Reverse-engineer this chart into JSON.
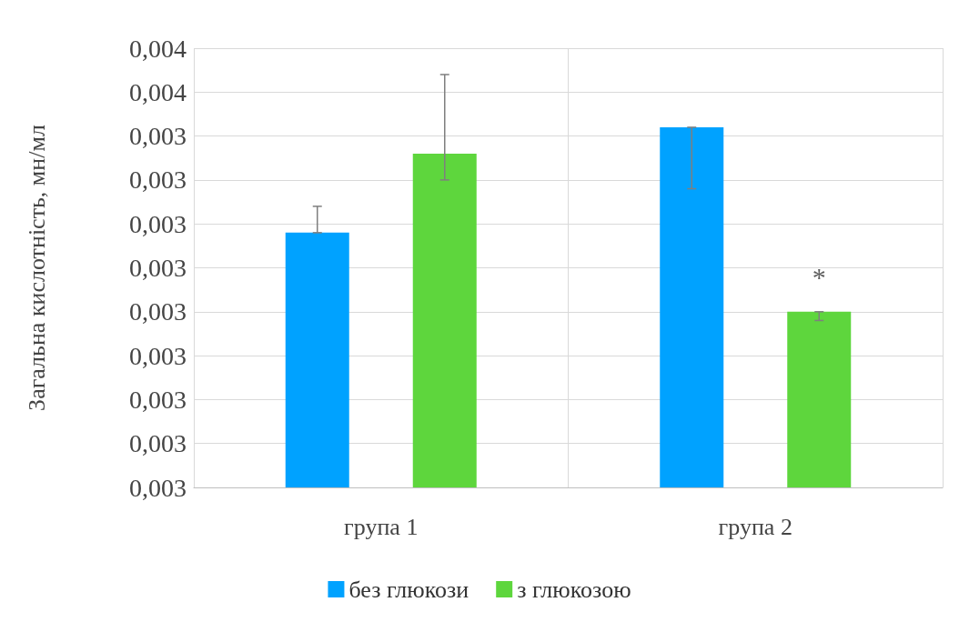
{
  "chart_data": {
    "type": "bar",
    "ylabel": "Загальна кислотність, мн/мл",
    "categories": [
      "група 1",
      "група 2"
    ],
    "series": [
      {
        "name": "без глюкози",
        "color": "#00a2ff",
        "values": [
          0.00335,
          0.00347
        ],
        "errors": [
          [
            0.00335,
            0.00338
          ],
          [
            0.0034,
            0.00347
          ]
        ]
      },
      {
        "name": "з глюкозою",
        "color": "#5ed63d",
        "values": [
          0.00344,
          0.00326
        ],
        "errors": [
          [
            0.00341,
            0.00353
          ],
          [
            0.00325,
            0.00326
          ]
        ]
      }
    ],
    "ylim": [
      0.00306,
      0.00356
    ],
    "yticks": [
      {
        "value": 0.00306,
        "label": "0,003"
      },
      {
        "value": 0.00311,
        "label": "0,003"
      },
      {
        "value": 0.00316,
        "label": "0,003"
      },
      {
        "value": 0.00321,
        "label": "0,003"
      },
      {
        "value": 0.00326,
        "label": "0,003"
      },
      {
        "value": 0.00331,
        "label": "0,003"
      },
      {
        "value": 0.00336,
        "label": "0,003"
      },
      {
        "value": 0.00341,
        "label": "0,003"
      },
      {
        "value": 0.00346,
        "label": "0,003"
      },
      {
        "value": 0.00351,
        "label": "0,004"
      },
      {
        "value": 0.00356,
        "label": "0,004"
      }
    ],
    "annotations": [
      "*"
    ],
    "grid": true,
    "legend": "bottom"
  }
}
